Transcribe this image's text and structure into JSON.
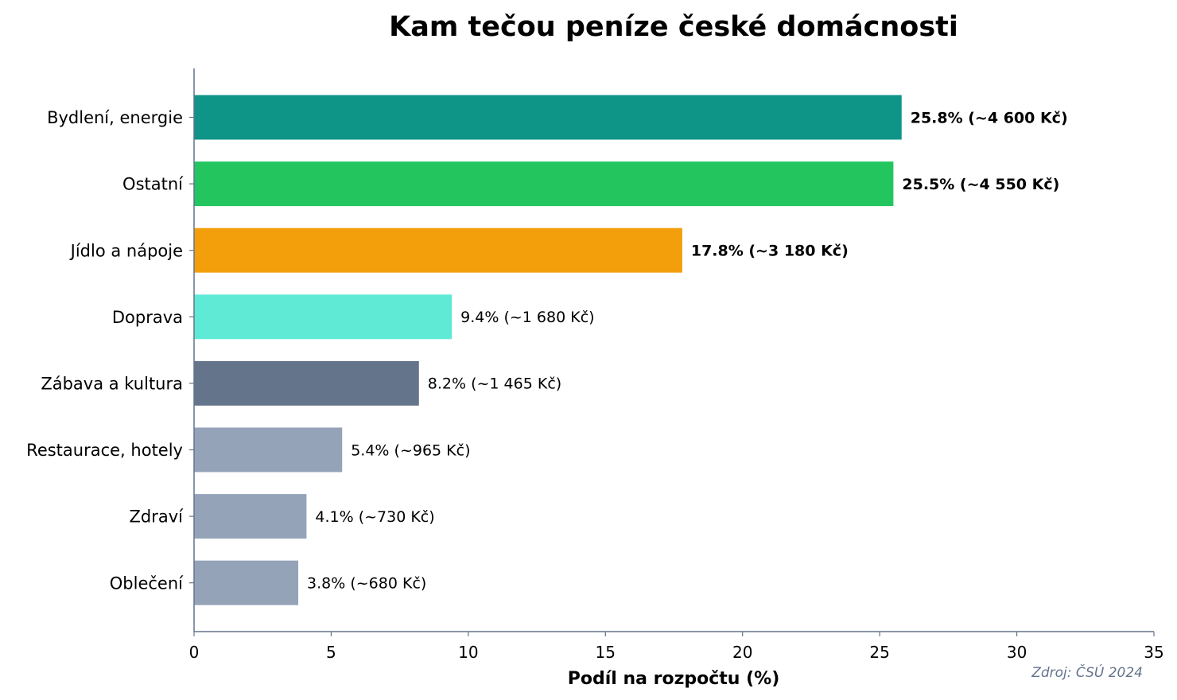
{
  "chart_data": {
    "type": "bar",
    "orientation": "horizontal",
    "title": "Kam tečou peníze české domácnosti",
    "xlabel": "Podíl na rozpočtu (%)",
    "ylabel": "",
    "xlim": [
      0,
      35
    ],
    "xticks": [
      0,
      5,
      10,
      15,
      20,
      25,
      30,
      35
    ],
    "categories": [
      "Bydlení, energie",
      "Ostatní",
      "Jídlo a nápoje",
      "Doprava",
      "Zábava a kultura",
      "Restaurace, hotely",
      "Zdraví",
      "Oblečení"
    ],
    "values": [
      25.8,
      25.5,
      17.8,
      9.4,
      8.2,
      5.4,
      4.1,
      3.8
    ],
    "data_labels": [
      "25.8%  (~4 600 Kč)",
      "25.5%  (~4 550 Kč)",
      "17.8%  (~3 180 Kč)",
      "9.4%  (~1 680 Kč)",
      "8.2%  (~1 465 Kč)",
      "5.4%  (~965 Kč)",
      "4.1%  (~730 Kč)",
      "3.8%  (~680 Kč)"
    ],
    "bold_labels": [
      true,
      true,
      true,
      false,
      false,
      false,
      false,
      false
    ],
    "colors": [
      "#0f9488",
      "#22c55e",
      "#f39e0b",
      "#5eead4",
      "#64748b",
      "#94a3b8",
      "#94a3b8",
      "#94a3b8"
    ],
    "grid": false,
    "source": "Zdroj: ČSÚ 2024"
  }
}
